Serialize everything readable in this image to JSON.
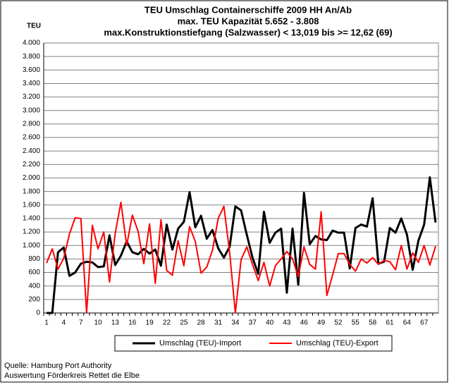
{
  "chart_data": {
    "type": "line",
    "title": [
      "TEU Umschlag Containerschiffe 2009 HH An/Ab",
      "max. TEU Kapazität  5.652 - 3.808",
      "max.Konstruktionstiefgang (Salzwasser) < 13,019 bis >= 12,62 (69)"
    ],
    "y_label": "TEU",
    "source": [
      "Quelle: Hamburg Port Authority",
      "Auswertung Förderkreis Rettet die Elbe"
    ],
    "categories": [
      "1",
      null,
      null,
      "4",
      null,
      null,
      "7",
      null,
      null,
      "10",
      null,
      null,
      "13",
      null,
      null,
      "16",
      null,
      null,
      "19",
      null,
      null,
      "22",
      null,
      null,
      "25",
      null,
      null,
      "28",
      null,
      null,
      "31",
      null,
      null,
      "34",
      null,
      null,
      "37",
      null,
      null,
      "40",
      null,
      null,
      "43",
      null,
      null,
      "46",
      null,
      null,
      "49",
      null,
      null,
      "52",
      null,
      null,
      "55",
      null,
      null,
      "58",
      null,
      null,
      "61",
      null,
      null,
      "64",
      null,
      null,
      "67",
      null,
      null
    ],
    "series": [
      {
        "name": "Umschlag (TEU)-Import",
        "color": "#000000",
        "values": [
          0,
          0,
          900,
          970,
          550,
          600,
          730,
          760,
          750,
          680,
          690,
          1150,
          710,
          850,
          1060,
          900,
          870,
          950,
          880,
          940,
          700,
          1310,
          940,
          1250,
          1350,
          1790,
          1270,
          1440,
          1100,
          1230,
          960,
          820,
          980,
          1580,
          1520,
          1160,
          820,
          580,
          1500,
          1040,
          1190,
          1250,
          300,
          1250,
          420,
          1780,
          1020,
          1140,
          1090,
          1080,
          1220,
          1190,
          1190,
          660,
          1260,
          1310,
          1280,
          1700,
          730,
          760,
          1260,
          1190,
          1400,
          1160,
          640,
          1070,
          1310,
          2010,
          1340
        ]
      },
      {
        "name": "Umschlag (TEU)-Export",
        "color": "#ff0000",
        "values": [
          740,
          950,
          650,
          810,
          1170,
          1410,
          1400,
          0,
          1300,
          950,
          1200,
          460,
          1180,
          1640,
          1000,
          1450,
          1210,
          730,
          1320,
          440,
          1380,
          630,
          560,
          1070,
          700,
          1280,
          1060,
          590,
          680,
          930,
          1400,
          1580,
          900,
          0,
          790,
          980,
          720,
          480,
          750,
          400,
          700,
          800,
          910,
          800,
          540,
          980,
          720,
          650,
          1500,
          260,
          560,
          880,
          880,
          720,
          620,
          800,
          740,
          820,
          720,
          780,
          760,
          640,
          1000,
          650,
          890,
          750,
          1000,
          710,
          990
        ]
      }
    ],
    "ylim": [
      0,
      4000
    ],
    "yticks": [
      0,
      {
        "value": 200,
        "label": "200"
      },
      {
        "value": 400,
        "label": "400"
      },
      {
        "value": 600,
        "label": "600"
      },
      {
        "value": 800,
        "label": "800"
      },
      {
        "value": 1000,
        "label": "1.000"
      },
      {
        "value": 1200,
        "label": "1.200"
      },
      {
        "value": 1400,
        "label": "1.400"
      },
      {
        "value": 1600,
        "label": "1.600"
      },
      {
        "value": 1800,
        "label": "1.800"
      },
      {
        "value": 2000,
        "label": "2.000"
      },
      {
        "value": 2200,
        "label": "2.200"
      },
      {
        "value": 2400,
        "label": "2.400"
      },
      {
        "value": 2600,
        "label": "2.600"
      },
      {
        "value": 2800,
        "label": "2.800"
      },
      {
        "value": 3000,
        "label": "3.000"
      },
      {
        "value": 3200,
        "label": "3.200"
      },
      {
        "value": 3400,
        "label": "3.400"
      },
      {
        "value": 3600,
        "label": "3.600"
      },
      {
        "value": 3800,
        "label": "3.800"
      },
      {
        "value": 4000,
        "label": "4.000"
      }
    ],
    "grid": true,
    "legend": "bottom"
  }
}
